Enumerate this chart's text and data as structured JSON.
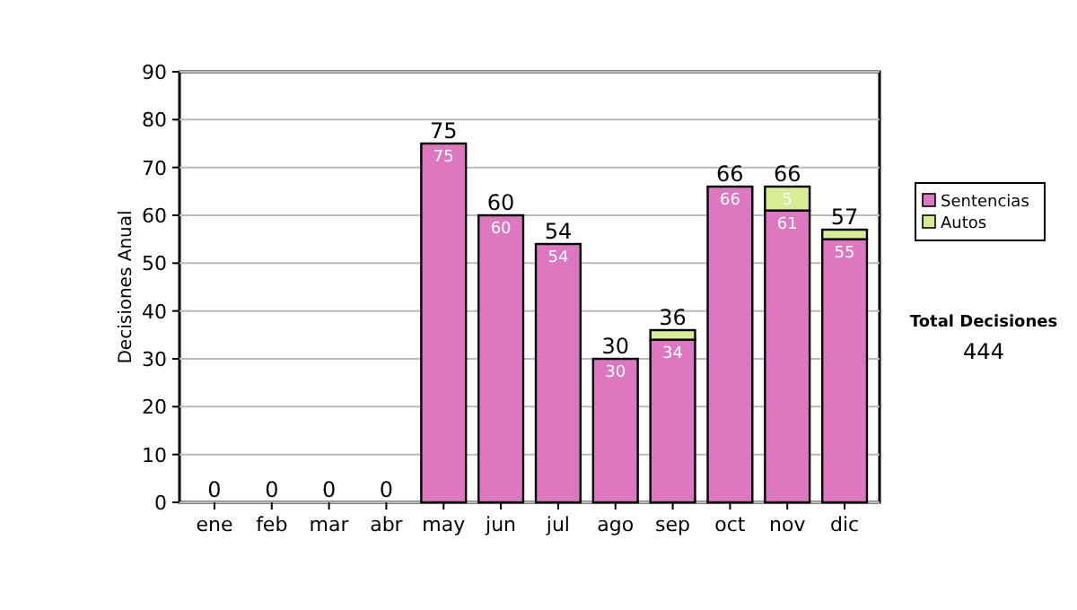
{
  "chart_data": {
    "type": "bar",
    "stacked": true,
    "ylabel": "Decisiones Anual",
    "categories": [
      "ene",
      "feb",
      "mar",
      "abr",
      "may",
      "jun",
      "jul",
      "ago",
      "sep",
      "oct",
      "nov",
      "dic"
    ],
    "series": [
      {
        "name": "Sentencias",
        "color": "#dd77c0",
        "values": [
          0,
          0,
          0,
          0,
          75,
          60,
          54,
          30,
          34,
          66,
          61,
          55
        ],
        "value_labels": [
          null,
          null,
          null,
          null,
          "75",
          "60",
          "54",
          "30",
          "34",
          "66",
          "61",
          "55"
        ]
      },
      {
        "name": "Autos",
        "color": "#d8ec94",
        "values": [
          0,
          0,
          0,
          0,
          0,
          0,
          0,
          0,
          2,
          0,
          5,
          2
        ],
        "value_labels": [
          null,
          null,
          null,
          null,
          null,
          null,
          null,
          null,
          null,
          null,
          "5",
          null
        ]
      }
    ],
    "totals": [
      "0",
      "0",
      "0",
      "0",
      "75",
      "60",
      "54",
      "30",
      "36",
      "66",
      "66",
      "57"
    ],
    "ylim": [
      0,
      90
    ],
    "yticks": [
      0,
      10,
      20,
      30,
      40,
      50,
      60,
      70,
      80,
      90
    ],
    "grid": "y",
    "legend": "right",
    "annotations": [
      "Total Decisiones",
      "444"
    ]
  }
}
